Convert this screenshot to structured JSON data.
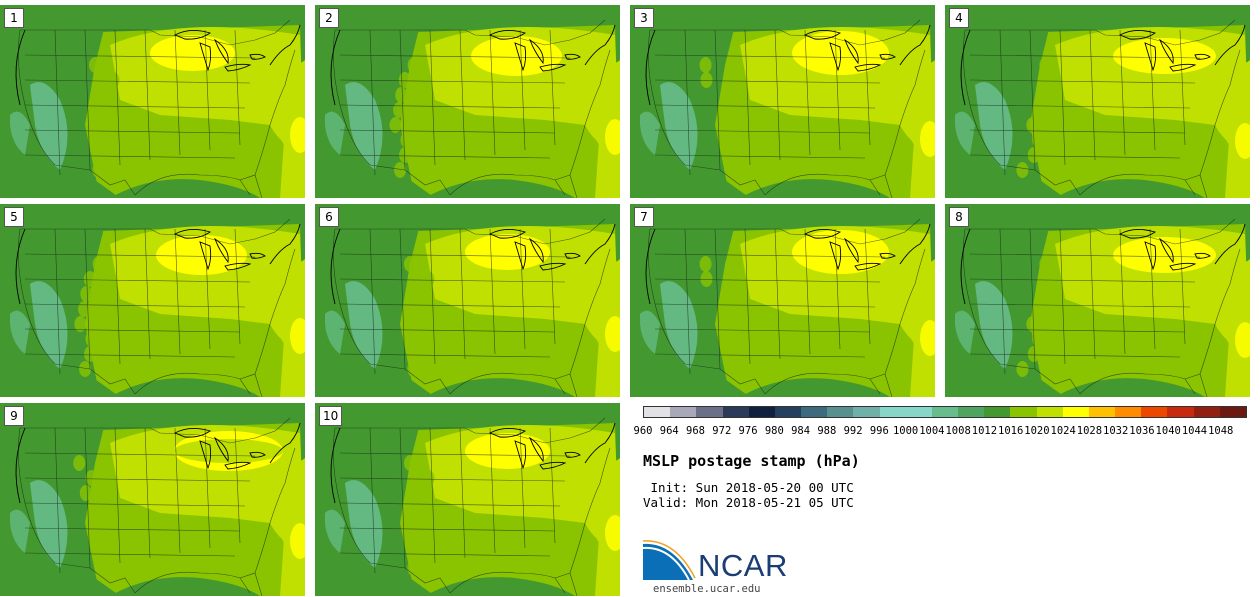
{
  "panels": [
    {
      "label": "1",
      "variant": 0
    },
    {
      "label": "2",
      "variant": 1
    },
    {
      "label": "3",
      "variant": 2
    },
    {
      "label": "4",
      "variant": 3
    },
    {
      "label": "5",
      "variant": 1
    },
    {
      "label": "6",
      "variant": 0
    },
    {
      "label": "7",
      "variant": 2
    },
    {
      "label": "8",
      "variant": 3
    },
    {
      "label": "9",
      "variant": 4
    },
    {
      "label": "10",
      "variant": 0
    }
  ],
  "legend": {
    "ticks": [
      "960",
      "964",
      "968",
      "972",
      "976",
      "980",
      "984",
      "988",
      "992",
      "996",
      "1000",
      "1004",
      "1008",
      "1012",
      "1016",
      "1020",
      "1024",
      "1028",
      "1032",
      "1036",
      "1040",
      "1044",
      "1048"
    ],
    "colors": [
      "#e1e1e6",
      "#a8a8b8",
      "#6b7088",
      "#2c3a5a",
      "#122040",
      "#25405e",
      "#3e6a7e",
      "#57908f",
      "#6fb0a8",
      "#86d6c9",
      "#86d6c9",
      "#68bd8c",
      "#4fa55f",
      "#43992f",
      "#8ac300",
      "#bfe000",
      "#ffff00",
      "#ffc000",
      "#ff8c00",
      "#ee4800",
      "#c82a10",
      "#922010",
      "#6a1a10"
    ]
  },
  "title": "MSLP postage stamp (hPa)",
  "init_line": " Init: Sun 2018-05-20 00 UTC",
  "valid_line": "Valid: Mon 2018-05-21 05 UTC",
  "logo_text": "NCAR",
  "url": "ensemble.ucar.edu",
  "map_colors": {
    "ocean": "#4fa55f",
    "low": "#43992f",
    "mid": "#8ac300",
    "high": "#bfe000",
    "peak": "#ffff00",
    "terrain": "#68bd8c"
  }
}
